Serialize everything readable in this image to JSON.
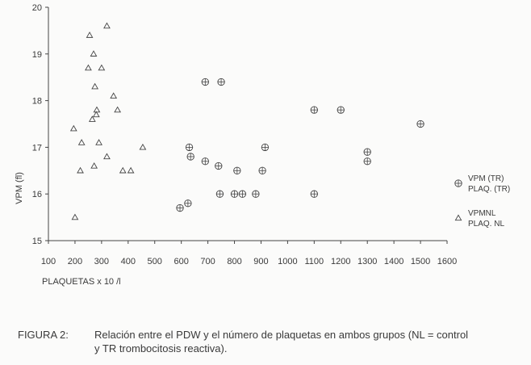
{
  "chart_data": {
    "type": "scatter",
    "ylabel": "VPM (fl)",
    "xlabel": "PLAQUETAS x 10 /l",
    "xlim": [
      100,
      1600
    ],
    "ylim": [
      15,
      20
    ],
    "x_ticks": [
      "100",
      "200",
      "300",
      "400",
      "500",
      "600",
      "700",
      "800",
      "900",
      "1000",
      "1100",
      "1200",
      "1300",
      "1400",
      "1500",
      "1600"
    ],
    "y_ticks": [
      "15",
      "16",
      "17",
      "18",
      "19",
      "20"
    ],
    "legend_position": "right",
    "series": [
      {
        "name": "VPM (TR) PLAQ. (TR)",
        "legend_lines": [
          "VPM (TR)",
          "PLAQ. (TR)"
        ],
        "marker": "circle-plus",
        "points": [
          [
            595,
            15.7
          ],
          [
            625,
            15.8
          ],
          [
            630,
            17.0
          ],
          [
            635,
            16.8
          ],
          [
            690,
            18.4
          ],
          [
            690,
            16.7
          ],
          [
            740,
            16.6
          ],
          [
            745,
            16.0
          ],
          [
            750,
            18.4
          ],
          [
            800,
            16.0
          ],
          [
            810,
            16.5
          ],
          [
            830,
            16.0
          ],
          [
            880,
            16.0
          ],
          [
            905,
            16.5
          ],
          [
            915,
            17.0
          ],
          [
            1100,
            17.8
          ],
          [
            1100,
            16.0
          ],
          [
            1200,
            17.8
          ],
          [
            1300,
            16.9
          ],
          [
            1300,
            16.7
          ],
          [
            1500,
            17.5
          ]
        ]
      },
      {
        "name": "VPMNL PLAQ. NL",
        "legend_lines": [
          "VPMNL",
          "PLAQ. NL"
        ],
        "marker": "triangle",
        "points": [
          [
            195,
            17.4
          ],
          [
            200,
            15.5
          ],
          [
            220,
            16.5
          ],
          [
            225,
            17.1
          ],
          [
            250,
            18.7
          ],
          [
            255,
            19.4
          ],
          [
            265,
            17.6
          ],
          [
            270,
            19.0
          ],
          [
            272,
            16.6
          ],
          [
            275,
            18.3
          ],
          [
            280,
            17.7
          ],
          [
            282,
            17.8
          ],
          [
            290,
            17.1
          ],
          [
            300,
            18.7
          ],
          [
            320,
            19.6
          ],
          [
            320,
            16.8
          ],
          [
            345,
            18.1
          ],
          [
            360,
            17.8
          ],
          [
            380,
            16.5
          ],
          [
            410,
            16.5
          ],
          [
            455,
            17.0
          ]
        ]
      }
    ]
  },
  "caption": {
    "label": "FIGURA 2:",
    "line1": "Relación entre el PDW y el número de plaquetas en ambos grupos (NL = control",
    "line2": "y TR trombocitosis reactiva)."
  }
}
